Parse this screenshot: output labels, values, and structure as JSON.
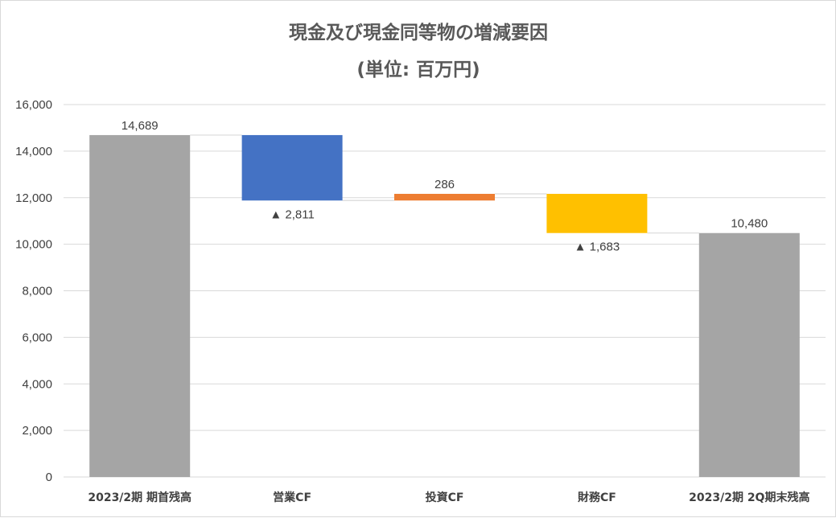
{
  "chart_data": {
    "type": "waterfall",
    "title": "現金及び現金同等物の増減要因",
    "subtitle": "(単位: 百万円)",
    "categories": [
      "2023/2期 期首残高",
      "営業CF",
      "投資CF",
      "財務CF",
      "2023/2期 2Q期末残高"
    ],
    "values": [
      14689,
      -2811,
      286,
      -1683,
      10480
    ],
    "kinds": [
      "total",
      "change",
      "change",
      "change",
      "total"
    ],
    "data_labels": [
      "14,689",
      "▲ 2,811",
      "286",
      "▲ 1,683",
      "10,480"
    ],
    "colors": [
      "#a5a5a5",
      "#4472c4",
      "#ed7d31",
      "#ffc000",
      "#a5a5a5"
    ],
    "ylim": [
      0,
      16000
    ],
    "yticks": [
      0,
      2000,
      4000,
      6000,
      8000,
      10000,
      12000,
      14000,
      16000
    ],
    "ytick_labels": [
      "0",
      "2,000",
      "4,000",
      "6,000",
      "8,000",
      "10,000",
      "12,000",
      "14,000",
      "16,000"
    ],
    "grid": true,
    "legend": "none"
  }
}
